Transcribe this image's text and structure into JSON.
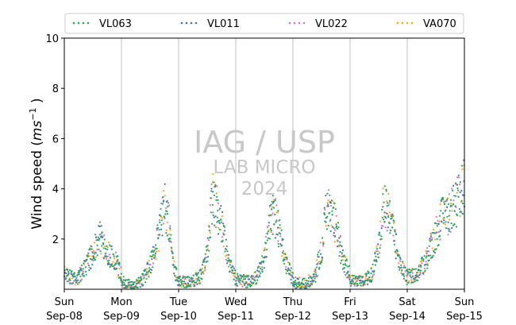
{
  "chart_data": {
    "type": "scatter",
    "ylabel_prefix": "Wind speed (",
    "ylabel_unit": "ms",
    "ylabel_exp": "−1",
    "ylabel_suffix": " )",
    "ylim": [
      0,
      10
    ],
    "yticks": [
      2,
      4,
      6,
      8,
      10
    ],
    "x_range_days": [
      0,
      7
    ],
    "xticks": [
      {
        "day": "Sun",
        "date": "Sep-08"
      },
      {
        "day": "Mon",
        "date": "Sep-09"
      },
      {
        "day": "Tue",
        "date": "Sep-10"
      },
      {
        "day": "Wed",
        "date": "Sep-11"
      },
      {
        "day": "Thu",
        "date": "Sep-12"
      },
      {
        "day": "Fri",
        "date": "Sep-13"
      },
      {
        "day": "Sat",
        "date": "Sep-14"
      },
      {
        "day": "Sun",
        "date": "Sep-15"
      }
    ],
    "grid": "vertical lines at each day",
    "legend_placement": "top",
    "watermark": [
      "IAG / USP",
      "LAB MICRO",
      "2024"
    ],
    "series": [
      {
        "name": "VL063",
        "color": "#2ca25f"
      },
      {
        "name": "VL011",
        "color": "#4a6fb0"
      },
      {
        "name": "VL022",
        "color": "#c779c5"
      },
      {
        "name": "VA070",
        "color": "#f5a623"
      }
    ],
    "daily_profile_note": "approximate diurnal envelopes (hour, wind speed) per day",
    "days": [
      {
        "date": "Sep-08",
        "profile": [
          [
            0,
            0.6
          ],
          [
            5,
            0.4
          ],
          [
            9,
            0.9
          ],
          [
            13,
            1.7
          ],
          [
            15,
            2.1
          ],
          [
            18,
            1.5
          ],
          [
            22,
            1.0
          ],
          [
            24,
            0.5
          ]
        ]
      },
      {
        "date": "Sep-09",
        "profile": [
          [
            0,
            0.3
          ],
          [
            5,
            0.1
          ],
          [
            9,
            0.4
          ],
          [
            12,
            1.0
          ],
          [
            14,
            1.6
          ],
          [
            16,
            2.4
          ],
          [
            18,
            3.4
          ],
          [
            20,
            2.5
          ],
          [
            22,
            0.8
          ],
          [
            24,
            0.3
          ]
        ]
      },
      {
        "date": "Sep-10",
        "profile": [
          [
            0,
            0.3
          ],
          [
            5,
            0.3
          ],
          [
            9,
            0.5
          ],
          [
            12,
            1.5
          ],
          [
            14,
            3.7
          ],
          [
            16,
            3.2
          ],
          [
            18,
            2.6
          ],
          [
            21,
            1.0
          ],
          [
            24,
            0.4
          ]
        ]
      },
      {
        "date": "Sep-11",
        "profile": [
          [
            0,
            0.4
          ],
          [
            5,
            0.3
          ],
          [
            9,
            0.5
          ],
          [
            12,
            1.3
          ],
          [
            14,
            2.5
          ],
          [
            16,
            3.0
          ],
          [
            18,
            2.3
          ],
          [
            21,
            1.0
          ],
          [
            24,
            0.4
          ]
        ]
      },
      {
        "date": "Sep-12",
        "profile": [
          [
            0,
            0.3
          ],
          [
            5,
            0.2
          ],
          [
            9,
            0.5
          ],
          [
            12,
            1.6
          ],
          [
            14,
            3.2
          ],
          [
            16,
            3.0
          ],
          [
            18,
            2.5
          ],
          [
            21,
            1.1
          ],
          [
            24,
            0.6
          ]
        ]
      },
      {
        "date": "Sep-13",
        "profile": [
          [
            0,
            0.4
          ],
          [
            5,
            0.3
          ],
          [
            9,
            0.6
          ],
          [
            12,
            1.7
          ],
          [
            14,
            3.4
          ],
          [
            16,
            3.0
          ],
          [
            18,
            2.2
          ],
          [
            21,
            1.0
          ],
          [
            24,
            0.4
          ]
        ]
      },
      {
        "date": "Sep-14",
        "profile": [
          [
            0,
            0.5
          ],
          [
            4,
            0.6
          ],
          [
            8,
            1.2
          ],
          [
            12,
            2.2
          ],
          [
            14,
            2.8
          ],
          [
            17,
            3.0
          ],
          [
            20,
            3.3
          ],
          [
            23,
            4.0
          ],
          [
            24,
            4.2
          ]
        ]
      }
    ]
  }
}
